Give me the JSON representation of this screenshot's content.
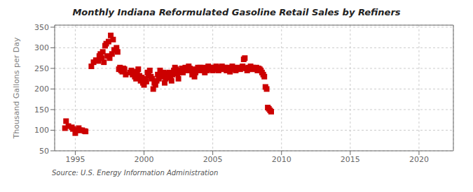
{
  "chart_data": {
    "type": "scatter",
    "title": "Monthly Indiana Reformulated Gasoline Retail Sales by Refiners",
    "ylabel": "Thousand Gallons per Day",
    "annotations": [
      "Source: U.S. Energy Information Administration"
    ],
    "color": "#cc0000",
    "marker": "square",
    "grid": true,
    "xlim": [
      1993.5,
      2022.5
    ],
    "ylim": [
      50,
      355
    ],
    "xticks": [
      1995,
      2000,
      2005,
      2010,
      2015,
      2020
    ],
    "yticks": [
      50,
      100,
      150,
      200,
      250,
      300,
      350
    ],
    "x": [
      1994.25,
      1994.33,
      1994.5,
      1994.75,
      1994.83,
      1995.0,
      1995.08,
      1995.17,
      1995.25,
      1995.33,
      1995.5,
      1995.67,
      1995.75,
      1996.17,
      1996.33,
      1996.5,
      1996.67,
      1996.75,
      1996.83,
      1996.92,
      1997.0,
      1997.08,
      1997.17,
      1997.25,
      1997.33,
      1997.42,
      1997.5,
      1997.58,
      1997.67,
      1997.75,
      1997.83,
      1998.0,
      1998.08,
      1998.17,
      1998.25,
      1998.33,
      1998.42,
      1998.5,
      1998.58,
      1998.67,
      1999.0,
      1999.08,
      1999.17,
      1999.25,
      1999.33,
      1999.42,
      1999.5,
      1999.58,
      1999.67,
      1999.75,
      1999.83,
      1999.92,
      2000.0,
      2000.08,
      2000.17,
      2000.25,
      2000.33,
      2000.42,
      2000.5,
      2000.58,
      2000.67,
      2000.75,
      2000.83,
      2000.92,
      2001.0,
      2001.08,
      2001.17,
      2001.25,
      2001.33,
      2001.42,
      2001.5,
      2001.58,
      2001.67,
      2001.75,
      2001.83,
      2001.92,
      2002.0,
      2002.08,
      2002.17,
      2002.25,
      2002.33,
      2002.42,
      2002.5,
      2002.58,
      2002.67,
      2002.75,
      2002.83,
      2002.92,
      2003.0,
      2003.08,
      2003.17,
      2003.25,
      2003.33,
      2003.42,
      2003.5,
      2003.58,
      2003.67,
      2003.75,
      2003.83,
      2003.92,
      2004.0,
      2004.08,
      2004.17,
      2004.25,
      2004.33,
      2004.42,
      2004.5,
      2004.58,
      2004.67,
      2004.75,
      2004.83,
      2004.92,
      2005.0,
      2005.08,
      2005.17,
      2005.25,
      2005.33,
      2005.42,
      2005.5,
      2005.58,
      2005.67,
      2005.75,
      2005.83,
      2005.92,
      2006.0,
      2006.08,
      2006.17,
      2006.25,
      2006.33,
      2006.42,
      2006.5,
      2006.58,
      2006.67,
      2006.75,
      2006.83,
      2006.92,
      2007.0,
      2007.08,
      2007.17,
      2007.25,
      2007.33,
      2007.42,
      2007.5,
      2007.58,
      2007.67,
      2007.75,
      2007.83,
      2007.92,
      2008.0,
      2008.08,
      2008.17,
      2008.25,
      2008.33,
      2008.42,
      2008.5,
      2008.58,
      2008.67,
      2008.75,
      2008.83,
      2008.92,
      2009.0,
      2009.08,
      2009.17,
      2009.25
    ],
    "values": [
      105,
      122,
      110,
      107,
      103,
      93,
      100,
      100,
      105,
      100,
      100,
      98,
      97,
      255,
      265,
      270,
      268,
      280,
      285,
      275,
      290,
      265,
      305,
      310,
      280,
      315,
      275,
      330,
      285,
      320,
      295,
      300,
      290,
      248,
      252,
      245,
      242,
      250,
      248,
      235,
      240,
      245,
      235,
      242,
      230,
      225,
      240,
      248,
      232,
      220,
      228,
      215,
      210,
      225,
      218,
      240,
      232,
      245,
      230,
      225,
      200,
      215,
      210,
      220,
      235,
      225,
      245,
      238,
      230,
      240,
      215,
      225,
      238,
      228,
      240,
      232,
      220,
      235,
      245,
      252,
      248,
      238,
      225,
      240,
      245,
      250,
      240,
      248,
      252,
      245,
      248,
      255,
      250,
      245,
      235,
      248,
      230,
      240,
      245,
      252,
      248,
      252,
      245,
      248,
      252,
      240,
      248,
      245,
      255,
      250,
      252,
      248,
      245,
      252,
      248,
      255,
      248,
      245,
      252,
      248,
      255,
      250,
      248,
      252,
      245,
      252,
      248,
      242,
      250,
      255,
      248,
      252,
      245,
      248,
      250,
      252,
      248,
      252,
      255,
      272,
      275,
      250,
      245,
      252,
      248,
      255,
      248,
      252,
      250,
      248,
      252,
      245,
      250,
      248,
      245,
      240,
      235,
      230,
      205,
      200,
      155,
      152,
      148,
      145
    ]
  }
}
